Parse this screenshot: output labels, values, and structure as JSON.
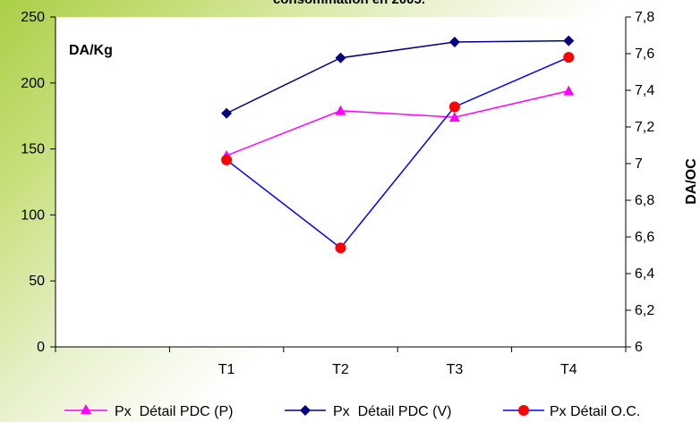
{
  "chart_data": {
    "type": "line",
    "title": "consommation en 2005.",
    "categories": [
      "T1",
      "T2",
      "T3",
      "T4"
    ],
    "y_left": {
      "label": "DA/Kg",
      "min": 0,
      "max": 250,
      "ticks": [
        "0",
        "50",
        "100",
        "150",
        "200",
        "250"
      ]
    },
    "y_right": {
      "label": "DA/OC",
      "min": 6,
      "max": 7.8,
      "ticks": [
        "6",
        "6,2",
        "6,4",
        "6,6",
        "6,8",
        "7",
        "7,2",
        "7,4",
        "7,6",
        "7,8"
      ]
    },
    "series": [
      {
        "name": "Px  Détail PDC (P)",
        "axis": "left",
        "values": [
          145,
          179,
          174,
          194
        ],
        "color": "#ff00ff",
        "marker": "triangle"
      },
      {
        "name": "Px  Détail PDC (V)",
        "axis": "left",
        "values": [
          177,
          219,
          231,
          232
        ],
        "color": "#000080",
        "marker": "diamond"
      },
      {
        "name": "Px Détail O.C.",
        "axis": "right",
        "values": [
          7.02,
          6.54,
          7.31,
          7.58
        ],
        "line_color": "#0000ff",
        "marker_color": "#ff0000",
        "marker": "circle"
      }
    ],
    "grid": false,
    "legend_position": "bottom"
  }
}
